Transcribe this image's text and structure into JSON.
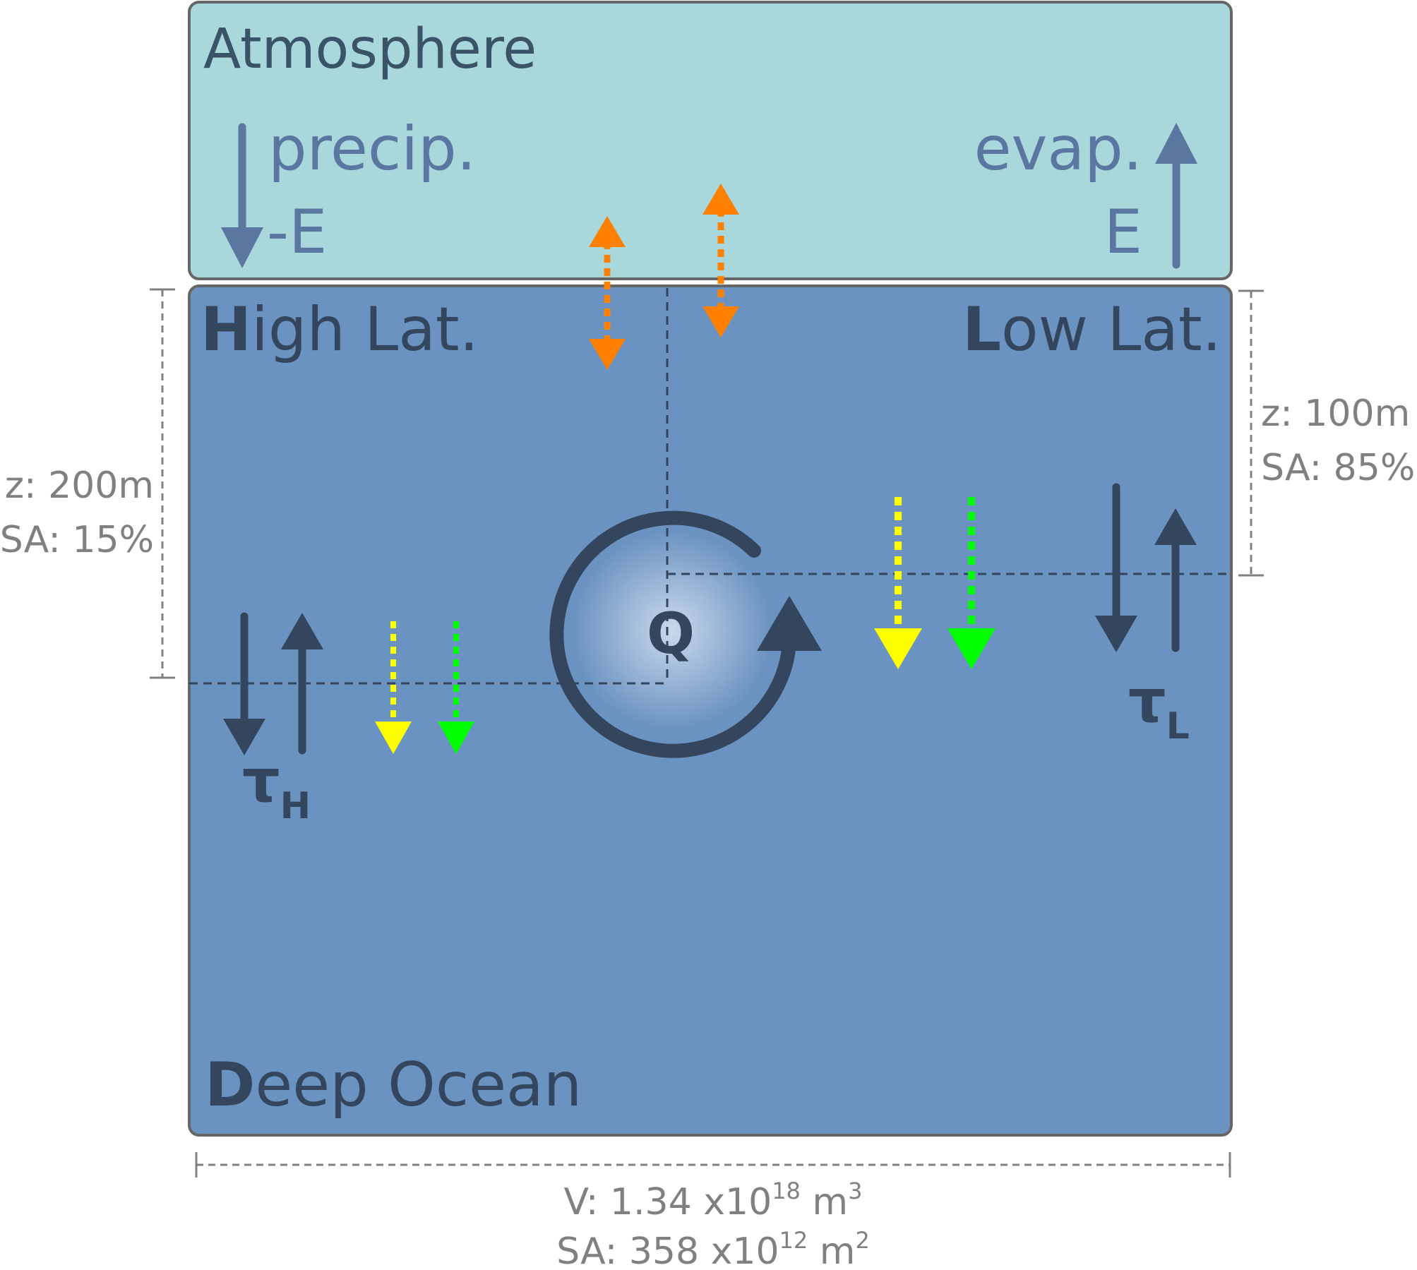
{
  "atmosphere": {
    "title": "Atmosphere",
    "precip_label": "precip.",
    "precip_symbol": "-E",
    "evap_label": "evap.",
    "evap_symbol": "E",
    "color": "#a8d8dc"
  },
  "ocean": {
    "color": "#6b93c2",
    "high_lat": {
      "initial": "H",
      "rest": "igh Lat."
    },
    "low_lat": {
      "initial": "L",
      "rest": "ow Lat."
    },
    "deep": {
      "initial": "D",
      "rest": "eep Ocean"
    },
    "circulation_label": "Q",
    "tau_high": {
      "symbol": "τ",
      "subscript": "H"
    },
    "tau_low": {
      "symbol": "τ",
      "subscript": "L"
    }
  },
  "dimensions": {
    "high_lat_depth": "z: 200m",
    "high_lat_area": "SA: 15%",
    "low_lat_depth": "z: 100m",
    "low_lat_area": "SA: 85%",
    "volume": {
      "prefix": "V: 1.34  x10",
      "exp": "18",
      "unit": " m",
      "unit_exp": "3"
    },
    "surface_area": {
      "prefix": "SA: 358 x10",
      "exp": "12",
      "unit": " m",
      "unit_exp": "2"
    }
  },
  "colors": {
    "exchange_arrow": "#ff8000",
    "yellow_flux": "#ffff00",
    "green_flux": "#00ff00",
    "dark_arrow": "#33465e",
    "atmos_arrow": "#5a77a1"
  }
}
